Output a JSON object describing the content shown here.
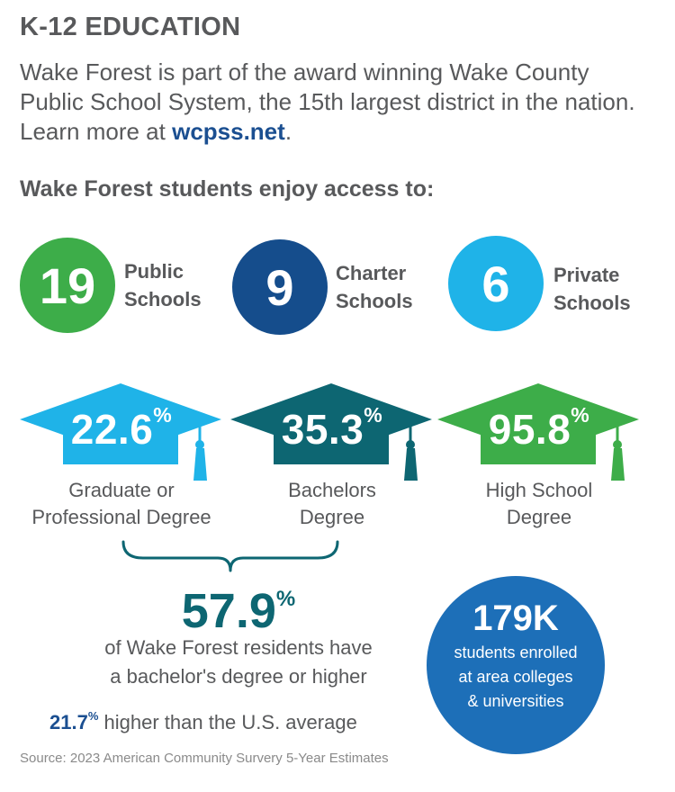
{
  "header": {
    "title": "K-12 EDUCATION",
    "intro_text": "Wake Forest is part of the award winning Wake County Public School System, the 15th largest district in the nation. Learn more at ",
    "intro_link": "wcpss.net",
    "intro_end": ".",
    "subheading": "Wake Forest students enjoy access to:"
  },
  "schools": [
    {
      "count": "19",
      "line1": "Public",
      "line2": "Schools",
      "color": "#3dad49"
    },
    {
      "count": "9",
      "line1": "Charter",
      "line2": "Schools",
      "color": "#154d8c"
    },
    {
      "count": "6",
      "line1": "Private",
      "line2": "Schools",
      "color": "#1fb3e8"
    }
  ],
  "degrees": [
    {
      "value": "22.6",
      "pct": "%",
      "line1": "Graduate or",
      "line2": "Professional Degree",
      "color": "#1fb3e8"
    },
    {
      "value": "35.3",
      "pct": "%",
      "line1": "Bachelors",
      "line2": "Degree",
      "color": "#0d6672"
    },
    {
      "value": "95.8",
      "pct": "%",
      "line1": "High School",
      "line2": "Degree",
      "color": "#3dad49"
    }
  ],
  "summary": {
    "value": "57.9",
    "pct": "%",
    "line1": "of Wake Forest residents have",
    "line2": "a bachelor's degree or higher",
    "compare_value": "21.7",
    "compare_pct": "%",
    "compare_text": " higher than the U.S. average"
  },
  "colleges": {
    "value": "179K",
    "line1": "students enrolled",
    "line2": "at area colleges",
    "line3": "& universities"
  },
  "source": "Source: 2023 American Community Survery 5-Year Estimates"
}
